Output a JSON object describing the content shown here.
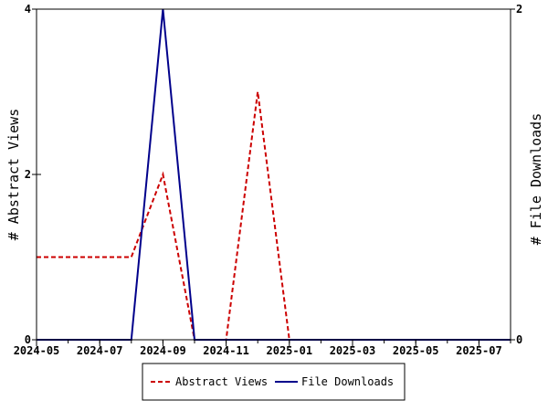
{
  "chart_data": {
    "type": "line",
    "x": [
      "2024-05",
      "2024-06",
      "2024-07",
      "2024-08",
      "2024-09",
      "2024-10",
      "2024-11",
      "2024-12",
      "2025-01",
      "2025-02",
      "2025-03",
      "2025-04",
      "2025-05",
      "2025-06",
      "2025-07",
      "2025-08"
    ],
    "x_tick_labels": [
      "2024-05",
      "2024-07",
      "2024-09",
      "2024-11",
      "2025-01",
      "2025-03",
      "2025-05",
      "2025-07"
    ],
    "xlim": [
      "2024-05",
      "2025-08"
    ],
    "left_axis": {
      "label": "# Abstract Views",
      "ylim": [
        0,
        4
      ],
      "ticks": [
        "0",
        "2",
        "4"
      ]
    },
    "right_axis": {
      "label": "# File Downloads",
      "ylim": [
        0,
        2
      ],
      "ticks": [
        "0",
        "2"
      ]
    },
    "series": [
      {
        "name": "Abstract Views",
        "axis": "left",
        "color": "#cc0000",
        "style": "dashed",
        "values": [
          1,
          1,
          1,
          1,
          2,
          0,
          0,
          3,
          0,
          0,
          0,
          0,
          0,
          0,
          0,
          0
        ]
      },
      {
        "name": "File Downloads",
        "axis": "right",
        "color": "#00008b",
        "style": "solid",
        "values": [
          0,
          0,
          0,
          0,
          2,
          0,
          0,
          0,
          0,
          0,
          0,
          0,
          0,
          0,
          0,
          0
        ]
      }
    ],
    "grid": false,
    "legend_position": "bottom-center"
  }
}
